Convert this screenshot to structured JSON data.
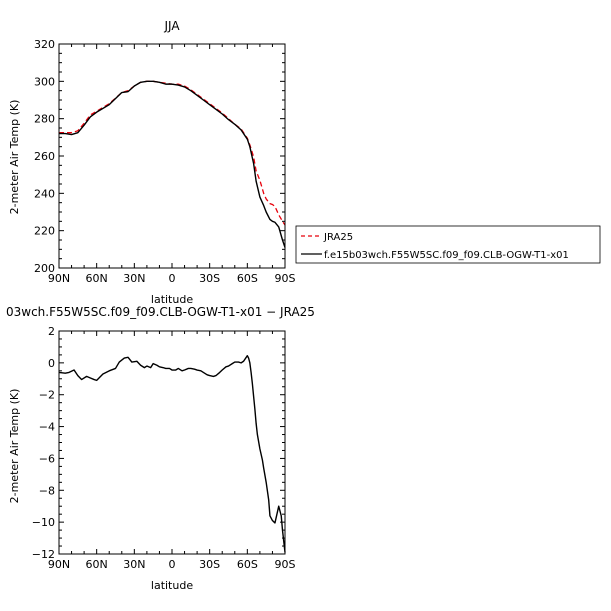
{
  "chart_data": [
    {
      "type": "line",
      "title": "JJA",
      "xlabel": "latitude",
      "ylabel": "2-meter Air Temp (K)",
      "xlim": [
        90,
        -90
      ],
      "ylim": [
        200,
        320
      ],
      "x_ticks": [
        90,
        60,
        30,
        0,
        -30,
        -60,
        -90
      ],
      "x_tick_labels": [
        "90N",
        "60N",
        "30N",
        "0",
        "30S",
        "60S",
        "90S"
      ],
      "y_ticks": [
        200,
        220,
        240,
        260,
        280,
        300,
        320
      ],
      "y_tick_labels": [
        "200",
        "220",
        "240",
        "260",
        "280",
        "300",
        "320"
      ],
      "legend_position": "outside-right-bottom",
      "series": [
        {
          "name": "JRA25",
          "color": "#e8000b",
          "style": "dashed",
          "x": [
            90,
            85,
            80,
            75,
            70,
            65,
            60,
            50,
            40,
            35,
            30,
            25,
            20,
            15,
            10,
            5,
            0,
            -5,
            -10,
            -15,
            -20,
            -25,
            -30,
            -35,
            -40,
            -45,
            -50,
            -55,
            -60,
            -62,
            -65,
            -67,
            -70,
            -73,
            -75,
            -78,
            -80,
            -82,
            -85,
            -88,
            -90
          ],
          "y": [
            272.5,
            272.5,
            272.5,
            273.5,
            277.5,
            282,
            284,
            288,
            294,
            295,
            297.5,
            299.5,
            300,
            300,
            299.5,
            299,
            298.5,
            298.5,
            297.5,
            295.5,
            293,
            290.5,
            288,
            285.5,
            283,
            280,
            277,
            274.5,
            269.5,
            266,
            259.5,
            252,
            247,
            240,
            237,
            234.5,
            234,
            233,
            228.5,
            225,
            223
          ]
        },
        {
          "name": "f.e15b03wch.F55W5SC.f09_f09.CLB-OGW-T1-x01",
          "color": "#000000",
          "style": "solid",
          "x": [
            90,
            85,
            80,
            75,
            70,
            65,
            60,
            50,
            40,
            35,
            30,
            25,
            20,
            15,
            10,
            5,
            0,
            -5,
            -10,
            -15,
            -20,
            -25,
            -30,
            -35,
            -40,
            -45,
            -50,
            -55,
            -60,
            -62,
            -65,
            -67,
            -70,
            -73,
            -75,
            -78,
            -80,
            -82,
            -85,
            -88,
            -90
          ],
          "y": [
            272,
            272,
            271.5,
            272.5,
            276.5,
            281,
            283.5,
            287.5,
            294,
            294.5,
            297.5,
            299.5,
            300,
            300,
            299.5,
            298.5,
            298.5,
            298,
            297,
            295,
            292.5,
            290,
            287.5,
            285,
            282.5,
            279.5,
            277,
            274,
            269,
            265,
            256,
            246.5,
            238,
            233.5,
            230,
            226,
            225,
            224.5,
            222,
            215,
            211
          ]
        }
      ]
    },
    {
      "type": "line",
      "title": "03wch.F55W5SC.f09_f09.CLB-OGW-T1-x01  −  JRA25",
      "xlabel": "latitude",
      "ylabel": "2-meter Air Temp (K)",
      "xlim": [
        90,
        -90
      ],
      "ylim": [
        -12,
        2
      ],
      "x_ticks": [
        90,
        60,
        30,
        0,
        -30,
        -60,
        -90
      ],
      "x_tick_labels": [
        "90N",
        "60N",
        "30N",
        "0",
        "30S",
        "60S",
        "90S"
      ],
      "y_ticks": [
        -12,
        -10,
        -8,
        -6,
        -4,
        -2,
        0,
        2
      ],
      "y_tick_labels": [
        "−12",
        "−10",
        "−8",
        "−6",
        "−4",
        "−2",
        "0",
        "2"
      ],
      "series": [
        {
          "color": "#000000",
          "style": "solid",
          "x": [
            90,
            85,
            82,
            78,
            75,
            72,
            68,
            65,
            62,
            60,
            55,
            50,
            45,
            42,
            38,
            35,
            32,
            28,
            25,
            22,
            20,
            17,
            15,
            12,
            10,
            7,
            5,
            2,
            0,
            -3,
            -5,
            -8,
            -10,
            -13,
            -15,
            -18,
            -20,
            -23,
            -25,
            -28,
            -30,
            -33,
            -35,
            -38,
            -40,
            -43,
            -45,
            -48,
            -50,
            -53,
            -55,
            -57,
            -60,
            -61,
            -62,
            -63,
            -64,
            -65,
            -66,
            -67,
            -68,
            -70,
            -72,
            -73,
            -75,
            -77,
            -78,
            -80,
            -82,
            -85,
            -87,
            -88,
            -90
          ],
          "y": [
            -0.6,
            -0.65,
            -0.6,
            -0.45,
            -0.8,
            -1.05,
            -0.85,
            -0.95,
            -1.05,
            -1.1,
            -0.7,
            -0.5,
            -0.35,
            0.05,
            0.3,
            0.35,
            0.05,
            0.1,
            -0.15,
            -0.3,
            -0.2,
            -0.3,
            -0.05,
            -0.15,
            -0.25,
            -0.3,
            -0.35,
            -0.35,
            -0.45,
            -0.45,
            -0.35,
            -0.5,
            -0.45,
            -0.35,
            -0.35,
            -0.4,
            -0.45,
            -0.5,
            -0.6,
            -0.75,
            -0.8,
            -0.85,
            -0.8,
            -0.6,
            -0.45,
            -0.25,
            -0.2,
            -0.05,
            0.05,
            0.05,
            0.0,
            0.1,
            0.45,
            0.3,
            0.0,
            -0.6,
            -1.3,
            -2.1,
            -2.9,
            -3.8,
            -4.5,
            -5.4,
            -6.1,
            -6.6,
            -7.5,
            -8.6,
            -9.6,
            -9.9,
            -10.05,
            -9.0,
            -9.6,
            -10.5,
            -11.9
          ]
        }
      ]
    }
  ]
}
